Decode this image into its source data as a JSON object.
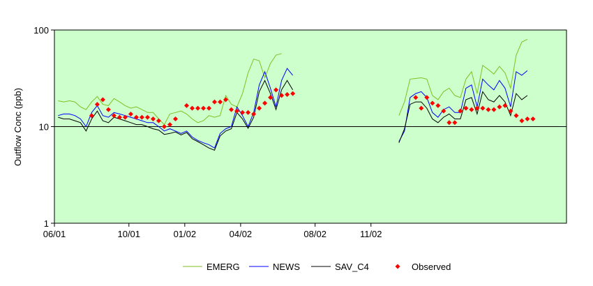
{
  "chart_data": {
    "type": "line",
    "title": "",
    "xlabel": "",
    "ylabel": "Outflow Conc (ppb)",
    "yscale": "log",
    "ylim": [
      1,
      100
    ],
    "xlim": [
      0,
      27.5
    ],
    "x_unit": "months since 06/01",
    "yticks": [
      1,
      10,
      100
    ],
    "ytick_labels": [
      "1",
      "10",
      "100"
    ],
    "xticks": [
      0,
      4,
      7,
      10,
      14,
      17
    ],
    "xtick_labels": [
      "06/01",
      "10/01",
      "01/02",
      "04/02",
      "08/02",
      "11/02"
    ],
    "reference_line": 10,
    "plot_background": "#ccffcc",
    "legend_position": "bottom",
    "series": [
      {
        "name": "EMERG",
        "color": "#80c020",
        "kind": "line",
        "segments": [
          [
            [
              0.2,
              18.5
            ],
            [
              0.5,
              18
            ],
            [
              0.8,
              18.5
            ],
            [
              1.1,
              18
            ],
            [
              1.4,
              16
            ],
            [
              1.7,
              15
            ],
            [
              2.0,
              18
            ],
            [
              2.3,
              20.5
            ],
            [
              2.6,
              17
            ],
            [
              2.9,
              16.5
            ],
            [
              3.2,
              19.5
            ],
            [
              3.5,
              18
            ],
            [
              3.8,
              16.5
            ],
            [
              4.1,
              15.5
            ],
            [
              4.4,
              16
            ],
            [
              4.7,
              15
            ],
            [
              5.0,
              14
            ],
            [
              5.3,
              14
            ],
            [
              5.6,
              12
            ],
            [
              5.9,
              10.5
            ],
            [
              6.2,
              13.5
            ],
            [
              6.5,
              14
            ],
            [
              6.8,
              14.5
            ],
            [
              7.1,
              13.5
            ],
            [
              7.4,
              12
            ],
            [
              7.7,
              11
            ],
            [
              8.0,
              11.5
            ],
            [
              8.3,
              13
            ],
            [
              8.6,
              12.5
            ],
            [
              8.9,
              13
            ],
            [
              9.2,
              21
            ],
            [
              9.5,
              17
            ],
            [
              9.8,
              16
            ],
            [
              10.1,
              22
            ],
            [
              10.4,
              36
            ],
            [
              10.7,
              50
            ],
            [
              11.0,
              48
            ],
            [
              11.3,
              32
            ],
            [
              11.6,
              45
            ],
            [
              11.9,
              55
            ],
            [
              12.2,
              57
            ]
          ],
          [
            [
              18.5,
              13
            ],
            [
              18.8,
              18
            ],
            [
              19.1,
              31
            ],
            [
              19.4,
              31.5
            ],
            [
              19.7,
              32
            ],
            [
              20.0,
              31
            ],
            [
              20.3,
              21
            ],
            [
              20.6,
              19
            ],
            [
              20.9,
              23
            ],
            [
              21.2,
              25
            ],
            [
              21.5,
              21
            ],
            [
              21.8,
              20
            ],
            [
              22.1,
              31
            ],
            [
              22.4,
              37
            ],
            [
              22.7,
              22
            ],
            [
              23.0,
              43
            ],
            [
              23.3,
              39
            ],
            [
              23.6,
              35
            ],
            [
              23.9,
              42
            ],
            [
              24.2,
              36
            ],
            [
              24.5,
              25
            ],
            [
              24.8,
              55
            ],
            [
              25.1,
              75
            ],
            [
              25.4,
              80
            ]
          ]
        ]
      },
      {
        "name": "NEWS",
        "color": "#0000ff",
        "kind": "line",
        "segments": [
          [
            [
              0.2,
              13
            ],
            [
              0.5,
              13.5
            ],
            [
              0.8,
              13.5
            ],
            [
              1.1,
              13
            ],
            [
              1.4,
              12
            ],
            [
              1.7,
              10
            ],
            [
              2.0,
              14
            ],
            [
              2.3,
              16.5
            ],
            [
              2.6,
              13
            ],
            [
              2.9,
              12.5
            ],
            [
              3.2,
              14
            ],
            [
              3.5,
              13.5
            ],
            [
              3.8,
              13
            ],
            [
              4.1,
              12.5
            ],
            [
              4.4,
              12
            ],
            [
              4.7,
              11.5
            ],
            [
              5.0,
              11
            ],
            [
              5.3,
              11
            ],
            [
              5.6,
              10
            ],
            [
              5.9,
              9
            ],
            [
              6.2,
              9.5
            ],
            [
              6.5,
              9
            ],
            [
              6.8,
              8.5
            ],
            [
              7.1,
              9
            ],
            [
              7.4,
              7.8
            ],
            [
              7.7,
              7.2
            ],
            [
              8.0,
              6.8
            ],
            [
              8.3,
              6.5
            ],
            [
              8.6,
              6
            ],
            [
              8.9,
              8.5
            ],
            [
              9.2,
              9.5
            ],
            [
              9.5,
              10
            ],
            [
              9.8,
              16
            ],
            [
              10.1,
              13
            ],
            [
              10.4,
              10
            ],
            [
              10.7,
              14
            ],
            [
              11.0,
              27
            ],
            [
              11.3,
              37
            ],
            [
              11.6,
              25
            ],
            [
              11.9,
              16
            ],
            [
              12.2,
              30
            ],
            [
              12.5,
              40
            ],
            [
              12.8,
              34
            ]
          ],
          [
            [
              18.5,
              7
            ],
            [
              18.8,
              9
            ],
            [
              19.1,
              20
            ],
            [
              19.4,
              22
            ],
            [
              19.7,
              23
            ],
            [
              20.0,
              20
            ],
            [
              20.3,
              14
            ],
            [
              20.6,
              12.5
            ],
            [
              20.9,
              15
            ],
            [
              21.2,
              16
            ],
            [
              21.5,
              14
            ],
            [
              21.8,
              14
            ],
            [
              22.1,
              25
            ],
            [
              22.4,
              27
            ],
            [
              22.7,
              16
            ],
            [
              23.0,
              31
            ],
            [
              23.3,
              27
            ],
            [
              23.6,
              24
            ],
            [
              23.9,
              30
            ],
            [
              24.2,
              25
            ],
            [
              24.5,
              16
            ],
            [
              24.8,
              37
            ],
            [
              25.1,
              34
            ],
            [
              25.4,
              38
            ]
          ]
        ]
      },
      {
        "name": "SAV_C4",
        "color": "#000000",
        "kind": "line",
        "segments": [
          [
            [
              0.2,
              12.5
            ],
            [
              0.5,
              12
            ],
            [
              0.8,
              12
            ],
            [
              1.1,
              11.5
            ],
            [
              1.4,
              11
            ],
            [
              1.7,
              9
            ],
            [
              2.0,
              12
            ],
            [
              2.3,
              14.5
            ],
            [
              2.6,
              11.5
            ],
            [
              2.9,
              11
            ],
            [
              3.2,
              12.5
            ],
            [
              3.5,
              12
            ],
            [
              3.8,
              11.5
            ],
            [
              4.1,
              11
            ],
            [
              4.4,
              10.5
            ],
            [
              4.7,
              10.5
            ],
            [
              5.0,
              10
            ],
            [
              5.3,
              9.5
            ],
            [
              5.6,
              9.2
            ],
            [
              5.9,
              8.3
            ],
            [
              6.2,
              8.5
            ],
            [
              6.5,
              8.8
            ],
            [
              6.8,
              8.2
            ],
            [
              7.1,
              8.7
            ],
            [
              7.4,
              7.5
            ],
            [
              7.7,
              7.0
            ],
            [
              8.0,
              6.5
            ],
            [
              8.3,
              6.0
            ],
            [
              8.6,
              5.7
            ],
            [
              8.9,
              8
            ],
            [
              9.2,
              9
            ],
            [
              9.5,
              9.5
            ],
            [
              9.8,
              14
            ],
            [
              10.1,
              12
            ],
            [
              10.4,
              9.6
            ],
            [
              10.7,
              12.5
            ],
            [
              11.0,
              23
            ],
            [
              11.3,
              30
            ],
            [
              11.6,
              22
            ],
            [
              11.9,
              15
            ],
            [
              12.2,
              24
            ],
            [
              12.5,
              30
            ],
            [
              12.8,
              24
            ]
          ],
          [
            [
              18.5,
              6.8
            ],
            [
              18.8,
              9.5
            ],
            [
              19.1,
              17
            ],
            [
              19.4,
              18
            ],
            [
              19.7,
              18
            ],
            [
              20.0,
              15.5
            ],
            [
              20.3,
              12
            ],
            [
              20.6,
              11
            ],
            [
              20.9,
              12.5
            ],
            [
              21.2,
              13.5
            ],
            [
              21.5,
              12
            ],
            [
              21.8,
              12
            ],
            [
              22.1,
              19
            ],
            [
              22.4,
              20
            ],
            [
              22.7,
              13.5
            ],
            [
              23.0,
              23
            ],
            [
              23.3,
              19
            ],
            [
              23.6,
              18
            ],
            [
              23.9,
              21
            ],
            [
              24.2,
              18
            ],
            [
              24.5,
              13
            ],
            [
              24.8,
              22
            ],
            [
              25.1,
              19
            ],
            [
              25.4,
              21
            ]
          ]
        ]
      },
      {
        "name": "Observed",
        "color": "#ff0000",
        "kind": "marker",
        "points": [
          [
            2.0,
            13
          ],
          [
            2.3,
            17
          ],
          [
            2.6,
            19
          ],
          [
            2.9,
            15
          ],
          [
            3.2,
            13
          ],
          [
            3.5,
            12.5
          ],
          [
            3.8,
            12.5
          ],
          [
            4.1,
            13.5
          ],
          [
            4.4,
            12.5
          ],
          [
            4.7,
            12.5
          ],
          [
            5.0,
            12.5
          ],
          [
            5.3,
            12
          ],
          [
            5.6,
            11.5
          ],
          [
            5.9,
            10
          ],
          [
            6.2,
            10.5
          ],
          [
            6.5,
            12
          ],
          [
            7.1,
            16.5
          ],
          [
            7.4,
            15.5
          ],
          [
            7.7,
            15.5
          ],
          [
            8.0,
            15.5
          ],
          [
            8.3,
            15.5
          ],
          [
            8.6,
            18
          ],
          [
            8.9,
            18
          ],
          [
            9.2,
            19
          ],
          [
            9.5,
            15
          ],
          [
            9.8,
            14.5
          ],
          [
            10.1,
            14
          ],
          [
            10.4,
            14
          ],
          [
            10.7,
            13.5
          ],
          [
            11.0,
            15.5
          ],
          [
            11.3,
            17.5
          ],
          [
            11.6,
            20
          ],
          [
            11.9,
            24
          ],
          [
            12.2,
            21
          ],
          [
            12.5,
            21.5
          ],
          [
            12.8,
            22
          ],
          [
            19.4,
            20
          ],
          [
            19.7,
            15.5
          ],
          [
            20.0,
            20
          ],
          [
            20.3,
            17.5
          ],
          [
            20.6,
            16.5
          ],
          [
            20.9,
            14.5
          ],
          [
            21.2,
            11
          ],
          [
            21.5,
            11
          ],
          [
            21.8,
            14.5
          ],
          [
            22.1,
            15.5
          ],
          [
            22.4,
            15
          ],
          [
            22.7,
            15.5
          ],
          [
            23.0,
            15.5
          ],
          [
            23.3,
            15
          ],
          [
            23.6,
            15
          ],
          [
            23.9,
            16
          ],
          [
            24.2,
            16.5
          ],
          [
            24.5,
            14.5
          ],
          [
            24.8,
            13
          ],
          [
            25.1,
            11.5
          ],
          [
            25.4,
            12
          ],
          [
            25.7,
            12
          ]
        ]
      }
    ]
  }
}
